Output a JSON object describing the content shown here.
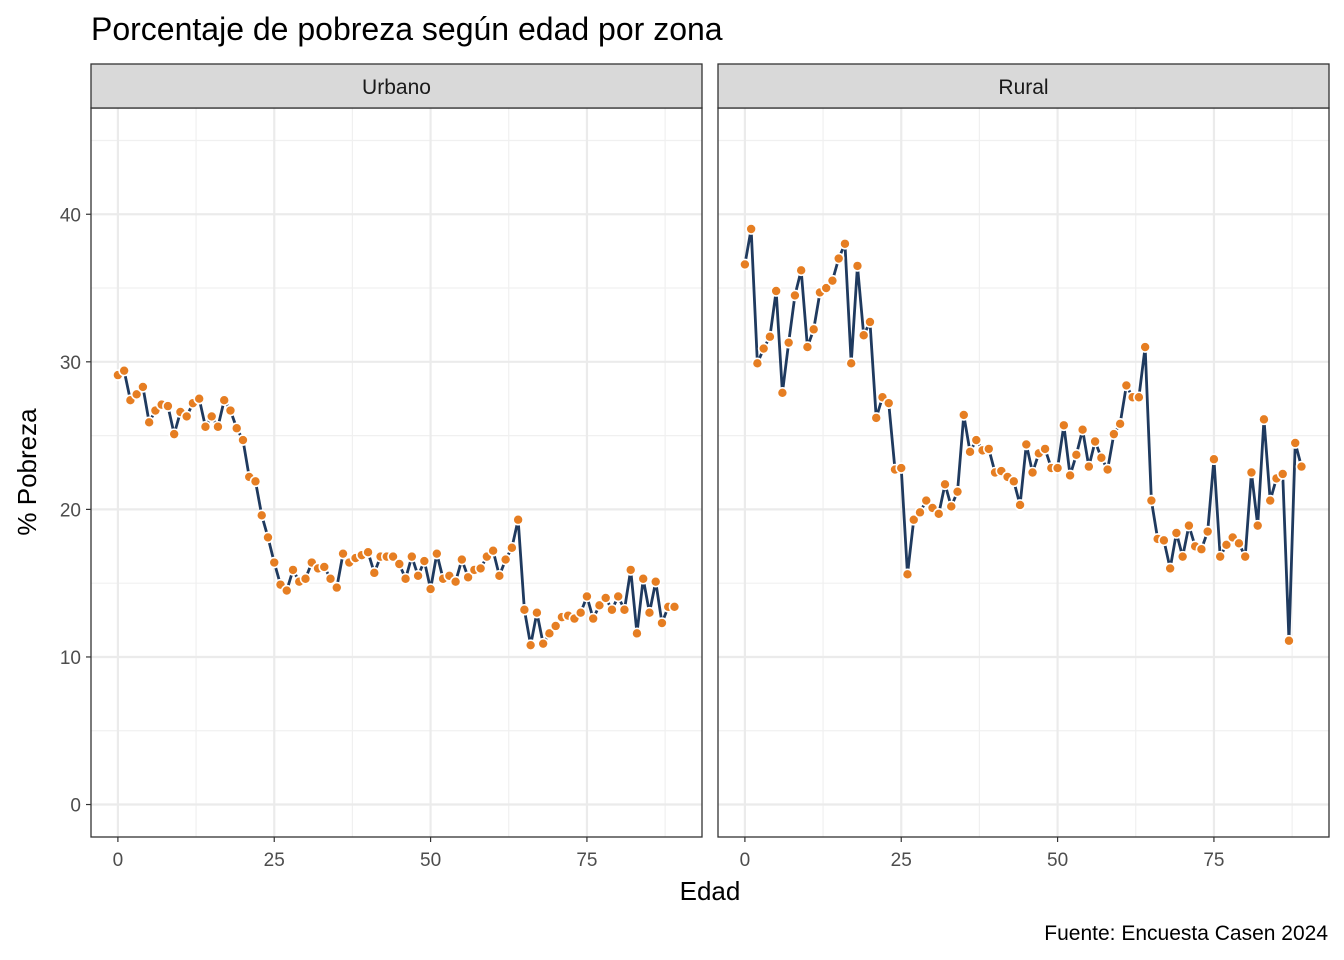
{
  "chart_data": {
    "type": "line",
    "title": "Porcentaje de pobreza según edad por zona",
    "xlabel": "Edad",
    "ylabel": "% Pobreza",
    "caption": "Fuente: Encuesta Casen 2024",
    "xlim": [
      -4.3,
      93.4
    ],
    "ylim": [
      -2.2,
      47.2
    ],
    "xticks": [
      0,
      25,
      50,
      75
    ],
    "yticks": [
      0,
      10,
      20,
      30,
      40
    ],
    "grid": true,
    "colors": {
      "line": "#1f3a5f",
      "point": "#e67e22",
      "strip": "#d9d9d9"
    },
    "panels": [
      {
        "name": "Urbano",
        "x_start": 0,
        "values": [
          29.1,
          29.4,
          27.4,
          27.8,
          28.3,
          25.9,
          26.7,
          27.1,
          27.0,
          25.1,
          26.6,
          26.3,
          27.2,
          27.5,
          25.6,
          26.3,
          25.6,
          27.4,
          26.7,
          25.5,
          24.7,
          22.2,
          21.9,
          19.6,
          18.1,
          16.4,
          14.9,
          14.5,
          15.9,
          15.1,
          15.3,
          16.4,
          16.0,
          16.1,
          15.3,
          14.7,
          17.0,
          16.4,
          16.7,
          16.9,
          17.1,
          15.7,
          16.8,
          16.8,
          16.8,
          16.3,
          15.3,
          16.8,
          15.5,
          16.5,
          14.6,
          17.0,
          15.3,
          15.5,
          15.1,
          16.6,
          15.4,
          15.9,
          16.0,
          16.8,
          17.2,
          15.5,
          16.6,
          17.4,
          19.3,
          13.2,
          10.8,
          13.0,
          10.9,
          11.6,
          12.1,
          12.7,
          12.8,
          12.6,
          13.0,
          14.1,
          12.6,
          13.5,
          14.0,
          13.2,
          14.1,
          13.2,
          15.9,
          11.6,
          15.3,
          13.0,
          15.1,
          12.3,
          13.4,
          13.4
        ]
      },
      {
        "name": "Rural",
        "x_start": 0,
        "values": [
          36.6,
          39.0,
          29.9,
          30.9,
          31.7,
          34.8,
          27.9,
          31.3,
          34.5,
          36.2,
          31.0,
          32.2,
          34.7,
          35.0,
          35.5,
          37.0,
          38.0,
          29.9,
          36.5,
          31.8,
          32.7,
          26.2,
          27.6,
          27.2,
          22.7,
          22.8,
          15.6,
          19.3,
          19.8,
          20.6,
          20.1,
          19.7,
          21.7,
          20.2,
          21.2,
          26.4,
          23.9,
          24.7,
          24.0,
          24.1,
          22.5,
          22.6,
          22.2,
          21.9,
          20.3,
          24.4,
          22.5,
          23.8,
          24.1,
          22.8,
          22.8,
          25.7,
          22.3,
          23.7,
          25.4,
          22.9,
          24.6,
          23.5,
          22.7,
          25.1,
          25.8,
          28.4,
          27.6,
          27.6,
          31.0,
          20.6,
          18.0,
          17.9,
          16.0,
          18.4,
          16.8,
          18.9,
          17.5,
          17.3,
          18.5,
          23.4,
          16.8,
          17.6,
          18.1,
          17.7,
          16.8,
          22.5,
          18.9,
          26.1,
          20.6,
          22.1,
          22.4,
          11.1,
          24.5,
          22.9
        ]
      }
    ]
  }
}
